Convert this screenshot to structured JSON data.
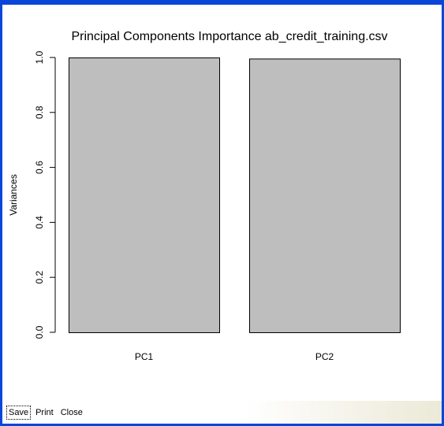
{
  "toolbar": {
    "save_label": "Save",
    "print_label": "Print",
    "close_label": "Close"
  },
  "chart_data": {
    "type": "bar",
    "title": "Principal Components Importance ab_credit_training.csv",
    "xlabel": "",
    "ylabel": "Variances",
    "categories": [
      "PC1",
      "PC2"
    ],
    "values": [
      1.0,
      0.996
    ],
    "ylim": [
      0,
      1.0
    ],
    "yticks": [
      "0.0",
      "0.2",
      "0.4",
      "0.6",
      "0.8",
      "1.0"
    ],
    "bar_color": "#bebebe",
    "grid": false,
    "legend": "none"
  }
}
